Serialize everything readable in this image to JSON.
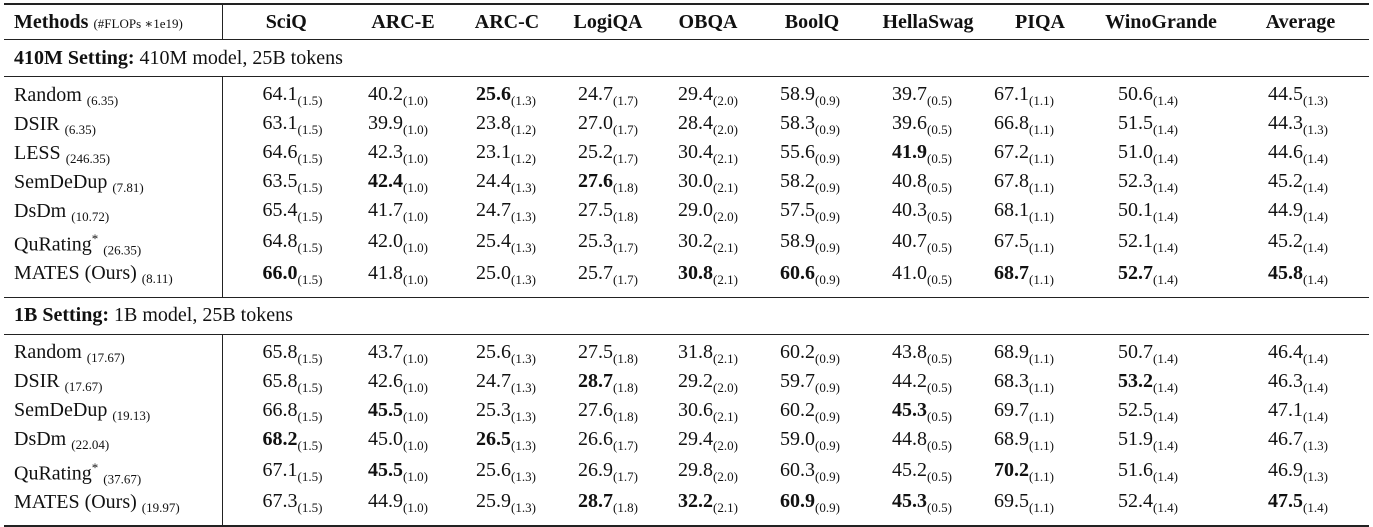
{
  "table": {
    "header": {
      "methods_label": "Methods",
      "methods_note": "(#FLOPs ∗1e19)",
      "columns": [
        "SciQ",
        "ARC-E",
        "ARC-C",
        "LogiQA",
        "OBQA",
        "BoolQ",
        "HellaSwag",
        "PIQA",
        "WinoGrande",
        "Average"
      ]
    },
    "sections": [
      {
        "title_bold": "410M Setting:",
        "title_rest": " 410M model, 25B tokens",
        "rows": [
          {
            "method": "Random",
            "star": "",
            "flops": "(6.35)",
            "cells": [
              {
                "v": "64.1",
                "s": "(1.5)",
                "b": false
              },
              {
                "v": "40.2",
                "s": "(1.0)",
                "b": false
              },
              {
                "v": "25.6",
                "s": "(1.3)",
                "b": true
              },
              {
                "v": "24.7",
                "s": "(1.7)",
                "b": false
              },
              {
                "v": "29.4",
                "s": "(2.0)",
                "b": false
              },
              {
                "v": "58.9",
                "s": "(0.9)",
                "b": false
              },
              {
                "v": "39.7",
                "s": "(0.5)",
                "b": false
              },
              {
                "v": "67.1",
                "s": "(1.1)",
                "b": false
              },
              {
                "v": "50.6",
                "s": "(1.4)",
                "b": false
              },
              {
                "v": "44.5",
                "s": "(1.3)",
                "b": false
              }
            ]
          },
          {
            "method": "DSIR",
            "star": "",
            "flops": "(6.35)",
            "cells": [
              {
                "v": "63.1",
                "s": "(1.5)",
                "b": false
              },
              {
                "v": "39.9",
                "s": "(1.0)",
                "b": false
              },
              {
                "v": "23.8",
                "s": "(1.2)",
                "b": false
              },
              {
                "v": "27.0",
                "s": "(1.7)",
                "b": false
              },
              {
                "v": "28.4",
                "s": "(2.0)",
                "b": false
              },
              {
                "v": "58.3",
                "s": "(0.9)",
                "b": false
              },
              {
                "v": "39.6",
                "s": "(0.5)",
                "b": false
              },
              {
                "v": "66.8",
                "s": "(1.1)",
                "b": false
              },
              {
                "v": "51.5",
                "s": "(1.4)",
                "b": false
              },
              {
                "v": "44.3",
                "s": "(1.3)",
                "b": false
              }
            ]
          },
          {
            "method": "LESS",
            "star": "",
            "flops": "(246.35)",
            "cells": [
              {
                "v": "64.6",
                "s": "(1.5)",
                "b": false
              },
              {
                "v": "42.3",
                "s": "(1.0)",
                "b": false
              },
              {
                "v": "23.1",
                "s": "(1.2)",
                "b": false
              },
              {
                "v": "25.2",
                "s": "(1.7)",
                "b": false
              },
              {
                "v": "30.4",
                "s": "(2.1)",
                "b": false
              },
              {
                "v": "55.6",
                "s": "(0.9)",
                "b": false
              },
              {
                "v": "41.9",
                "s": "(0.5)",
                "b": true
              },
              {
                "v": "67.2",
                "s": "(1.1)",
                "b": false
              },
              {
                "v": "51.0",
                "s": "(1.4)",
                "b": false
              },
              {
                "v": "44.6",
                "s": "(1.4)",
                "b": false
              }
            ]
          },
          {
            "method": "SemDeDup",
            "star": "",
            "flops": "(7.81)",
            "cells": [
              {
                "v": "63.5",
                "s": "(1.5)",
                "b": false
              },
              {
                "v": "42.4",
                "s": "(1.0)",
                "b": true
              },
              {
                "v": "24.4",
                "s": "(1.3)",
                "b": false
              },
              {
                "v": "27.6",
                "s": "(1.8)",
                "b": true
              },
              {
                "v": "30.0",
                "s": "(2.1)",
                "b": false
              },
              {
                "v": "58.2",
                "s": "(0.9)",
                "b": false
              },
              {
                "v": "40.8",
                "s": "(0.5)",
                "b": false
              },
              {
                "v": "67.8",
                "s": "(1.1)",
                "b": false
              },
              {
                "v": "52.3",
                "s": "(1.4)",
                "b": false
              },
              {
                "v": "45.2",
                "s": "(1.4)",
                "b": false
              }
            ]
          },
          {
            "method": "DsDm",
            "star": "",
            "flops": "(10.72)",
            "cells": [
              {
                "v": "65.4",
                "s": "(1.5)",
                "b": false
              },
              {
                "v": "41.7",
                "s": "(1.0)",
                "b": false
              },
              {
                "v": "24.7",
                "s": "(1.3)",
                "b": false
              },
              {
                "v": "27.5",
                "s": "(1.8)",
                "b": false
              },
              {
                "v": "29.0",
                "s": "(2.0)",
                "b": false
              },
              {
                "v": "57.5",
                "s": "(0.9)",
                "b": false
              },
              {
                "v": "40.3",
                "s": "(0.5)",
                "b": false
              },
              {
                "v": "68.1",
                "s": "(1.1)",
                "b": false
              },
              {
                "v": "50.1",
                "s": "(1.4)",
                "b": false
              },
              {
                "v": "44.9",
                "s": "(1.4)",
                "b": false
              }
            ]
          },
          {
            "method": "QuRating",
            "star": "*",
            "flops": "(26.35)",
            "cells": [
              {
                "v": "64.8",
                "s": "(1.5)",
                "b": false
              },
              {
                "v": "42.0",
                "s": "(1.0)",
                "b": false
              },
              {
                "v": "25.4",
                "s": "(1.3)",
                "b": false
              },
              {
                "v": "25.3",
                "s": "(1.7)",
                "b": false
              },
              {
                "v": "30.2",
                "s": "(2.1)",
                "b": false
              },
              {
                "v": "58.9",
                "s": "(0.9)",
                "b": false
              },
              {
                "v": "40.7",
                "s": "(0.5)",
                "b": false
              },
              {
                "v": "67.5",
                "s": "(1.1)",
                "b": false
              },
              {
                "v": "52.1",
                "s": "(1.4)",
                "b": false
              },
              {
                "v": "45.2",
                "s": "(1.4)",
                "b": false
              }
            ]
          },
          {
            "method": "MATES (Ours)",
            "star": "",
            "flops": "(8.11)",
            "cells": [
              {
                "v": "66.0",
                "s": "(1.5)",
                "b": true
              },
              {
                "v": "41.8",
                "s": "(1.0)",
                "b": false
              },
              {
                "v": "25.0",
                "s": "(1.3)",
                "b": false
              },
              {
                "v": "25.7",
                "s": "(1.7)",
                "b": false
              },
              {
                "v": "30.8",
                "s": "(2.1)",
                "b": true
              },
              {
                "v": "60.6",
                "s": "(0.9)",
                "b": true
              },
              {
                "v": "41.0",
                "s": "(0.5)",
                "b": false
              },
              {
                "v": "68.7",
                "s": "(1.1)",
                "b": true
              },
              {
                "v": "52.7",
                "s": "(1.4)",
                "b": true
              },
              {
                "v": "45.8",
                "s": "(1.4)",
                "b": true
              }
            ]
          }
        ]
      },
      {
        "title_bold": "1B Setting:",
        "title_rest": " 1B model, 25B tokens",
        "rows": [
          {
            "method": "Random",
            "star": "",
            "flops": "(17.67)",
            "cells": [
              {
                "v": "65.8",
                "s": "(1.5)",
                "b": false
              },
              {
                "v": "43.7",
                "s": "(1.0)",
                "b": false
              },
              {
                "v": "25.6",
                "s": "(1.3)",
                "b": false
              },
              {
                "v": "27.5",
                "s": "(1.8)",
                "b": false
              },
              {
                "v": "31.8",
                "s": "(2.1)",
                "b": false
              },
              {
                "v": "60.2",
                "s": "(0.9)",
                "b": false
              },
              {
                "v": "43.8",
                "s": "(0.5)",
                "b": false
              },
              {
                "v": "68.9",
                "s": "(1.1)",
                "b": false
              },
              {
                "v": "50.7",
                "s": "(1.4)",
                "b": false
              },
              {
                "v": "46.4",
                "s": "(1.4)",
                "b": false
              }
            ]
          },
          {
            "method": "DSIR",
            "star": "",
            "flops": "(17.67)",
            "cells": [
              {
                "v": "65.8",
                "s": "(1.5)",
                "b": false
              },
              {
                "v": "42.6",
                "s": "(1.0)",
                "b": false
              },
              {
                "v": "24.7",
                "s": "(1.3)",
                "b": false
              },
              {
                "v": "28.7",
                "s": "(1.8)",
                "b": true
              },
              {
                "v": "29.2",
                "s": "(2.0)",
                "b": false
              },
              {
                "v": "59.7",
                "s": "(0.9)",
                "b": false
              },
              {
                "v": "44.2",
                "s": "(0.5)",
                "b": false
              },
              {
                "v": "68.3",
                "s": "(1.1)",
                "b": false
              },
              {
                "v": "53.2",
                "s": "(1.4)",
                "b": true
              },
              {
                "v": "46.3",
                "s": "(1.4)",
                "b": false
              }
            ]
          },
          {
            "method": "SemDeDup",
            "star": "",
            "flops": "(19.13)",
            "cells": [
              {
                "v": "66.8",
                "s": "(1.5)",
                "b": false
              },
              {
                "v": "45.5",
                "s": "(1.0)",
                "b": true
              },
              {
                "v": "25.3",
                "s": "(1.3)",
                "b": false
              },
              {
                "v": "27.6",
                "s": "(1.8)",
                "b": false
              },
              {
                "v": "30.6",
                "s": "(2.1)",
                "b": false
              },
              {
                "v": "60.2",
                "s": "(0.9)",
                "b": false
              },
              {
                "v": "45.3",
                "s": "(0.5)",
                "b": true
              },
              {
                "v": "69.7",
                "s": "(1.1)",
                "b": false
              },
              {
                "v": "52.5",
                "s": "(1.4)",
                "b": false
              },
              {
                "v": "47.1",
                "s": "(1.4)",
                "b": false
              }
            ]
          },
          {
            "method": "DsDm",
            "star": "",
            "flops": "(22.04)",
            "cells": [
              {
                "v": "68.2",
                "s": "(1.5)",
                "b": true
              },
              {
                "v": "45.0",
                "s": "(1.0)",
                "b": false
              },
              {
                "v": "26.5",
                "s": "(1.3)",
                "b": true
              },
              {
                "v": "26.6",
                "s": "(1.7)",
                "b": false
              },
              {
                "v": "29.4",
                "s": "(2.0)",
                "b": false
              },
              {
                "v": "59.0",
                "s": "(0.9)",
                "b": false
              },
              {
                "v": "44.8",
                "s": "(0.5)",
                "b": false
              },
              {
                "v": "68.9",
                "s": "(1.1)",
                "b": false
              },
              {
                "v": "51.9",
                "s": "(1.4)",
                "b": false
              },
              {
                "v": "46.7",
                "s": "(1.3)",
                "b": false
              }
            ]
          },
          {
            "method": "QuRating",
            "star": "*",
            "flops": "(37.67)",
            "cells": [
              {
                "v": "67.1",
                "s": "(1.5)",
                "b": false
              },
              {
                "v": "45.5",
                "s": "(1.0)",
                "b": true
              },
              {
                "v": "25.6",
                "s": "(1.3)",
                "b": false
              },
              {
                "v": "26.9",
                "s": "(1.7)",
                "b": false
              },
              {
                "v": "29.8",
                "s": "(2.0)",
                "b": false
              },
              {
                "v": "60.3",
                "s": "(0.9)",
                "b": false
              },
              {
                "v": "45.2",
                "s": "(0.5)",
                "b": false
              },
              {
                "v": "70.2",
                "s": "(1.1)",
                "b": true
              },
              {
                "v": "51.6",
                "s": "(1.4)",
                "b": false
              },
              {
                "v": "46.9",
                "s": "(1.3)",
                "b": false
              }
            ]
          },
          {
            "method": "MATES (Ours)",
            "star": "",
            "flops": "(19.97)",
            "cells": [
              {
                "v": "67.3",
                "s": "(1.5)",
                "b": false
              },
              {
                "v": "44.9",
                "s": "(1.0)",
                "b": false
              },
              {
                "v": "25.9",
                "s": "(1.3)",
                "b": false
              },
              {
                "v": "28.7",
                "s": "(1.8)",
                "b": true
              },
              {
                "v": "32.2",
                "s": "(2.1)",
                "b": true
              },
              {
                "v": "60.9",
                "s": "(0.9)",
                "b": true
              },
              {
                "v": "45.3",
                "s": "(0.5)",
                "b": true
              },
              {
                "v": "69.5",
                "s": "(1.1)",
                "b": false
              },
              {
                "v": "52.4",
                "s": "(1.4)",
                "b": false
              },
              {
                "v": "47.5",
                "s": "(1.4)",
                "b": true
              }
            ]
          }
        ]
      }
    ]
  }
}
